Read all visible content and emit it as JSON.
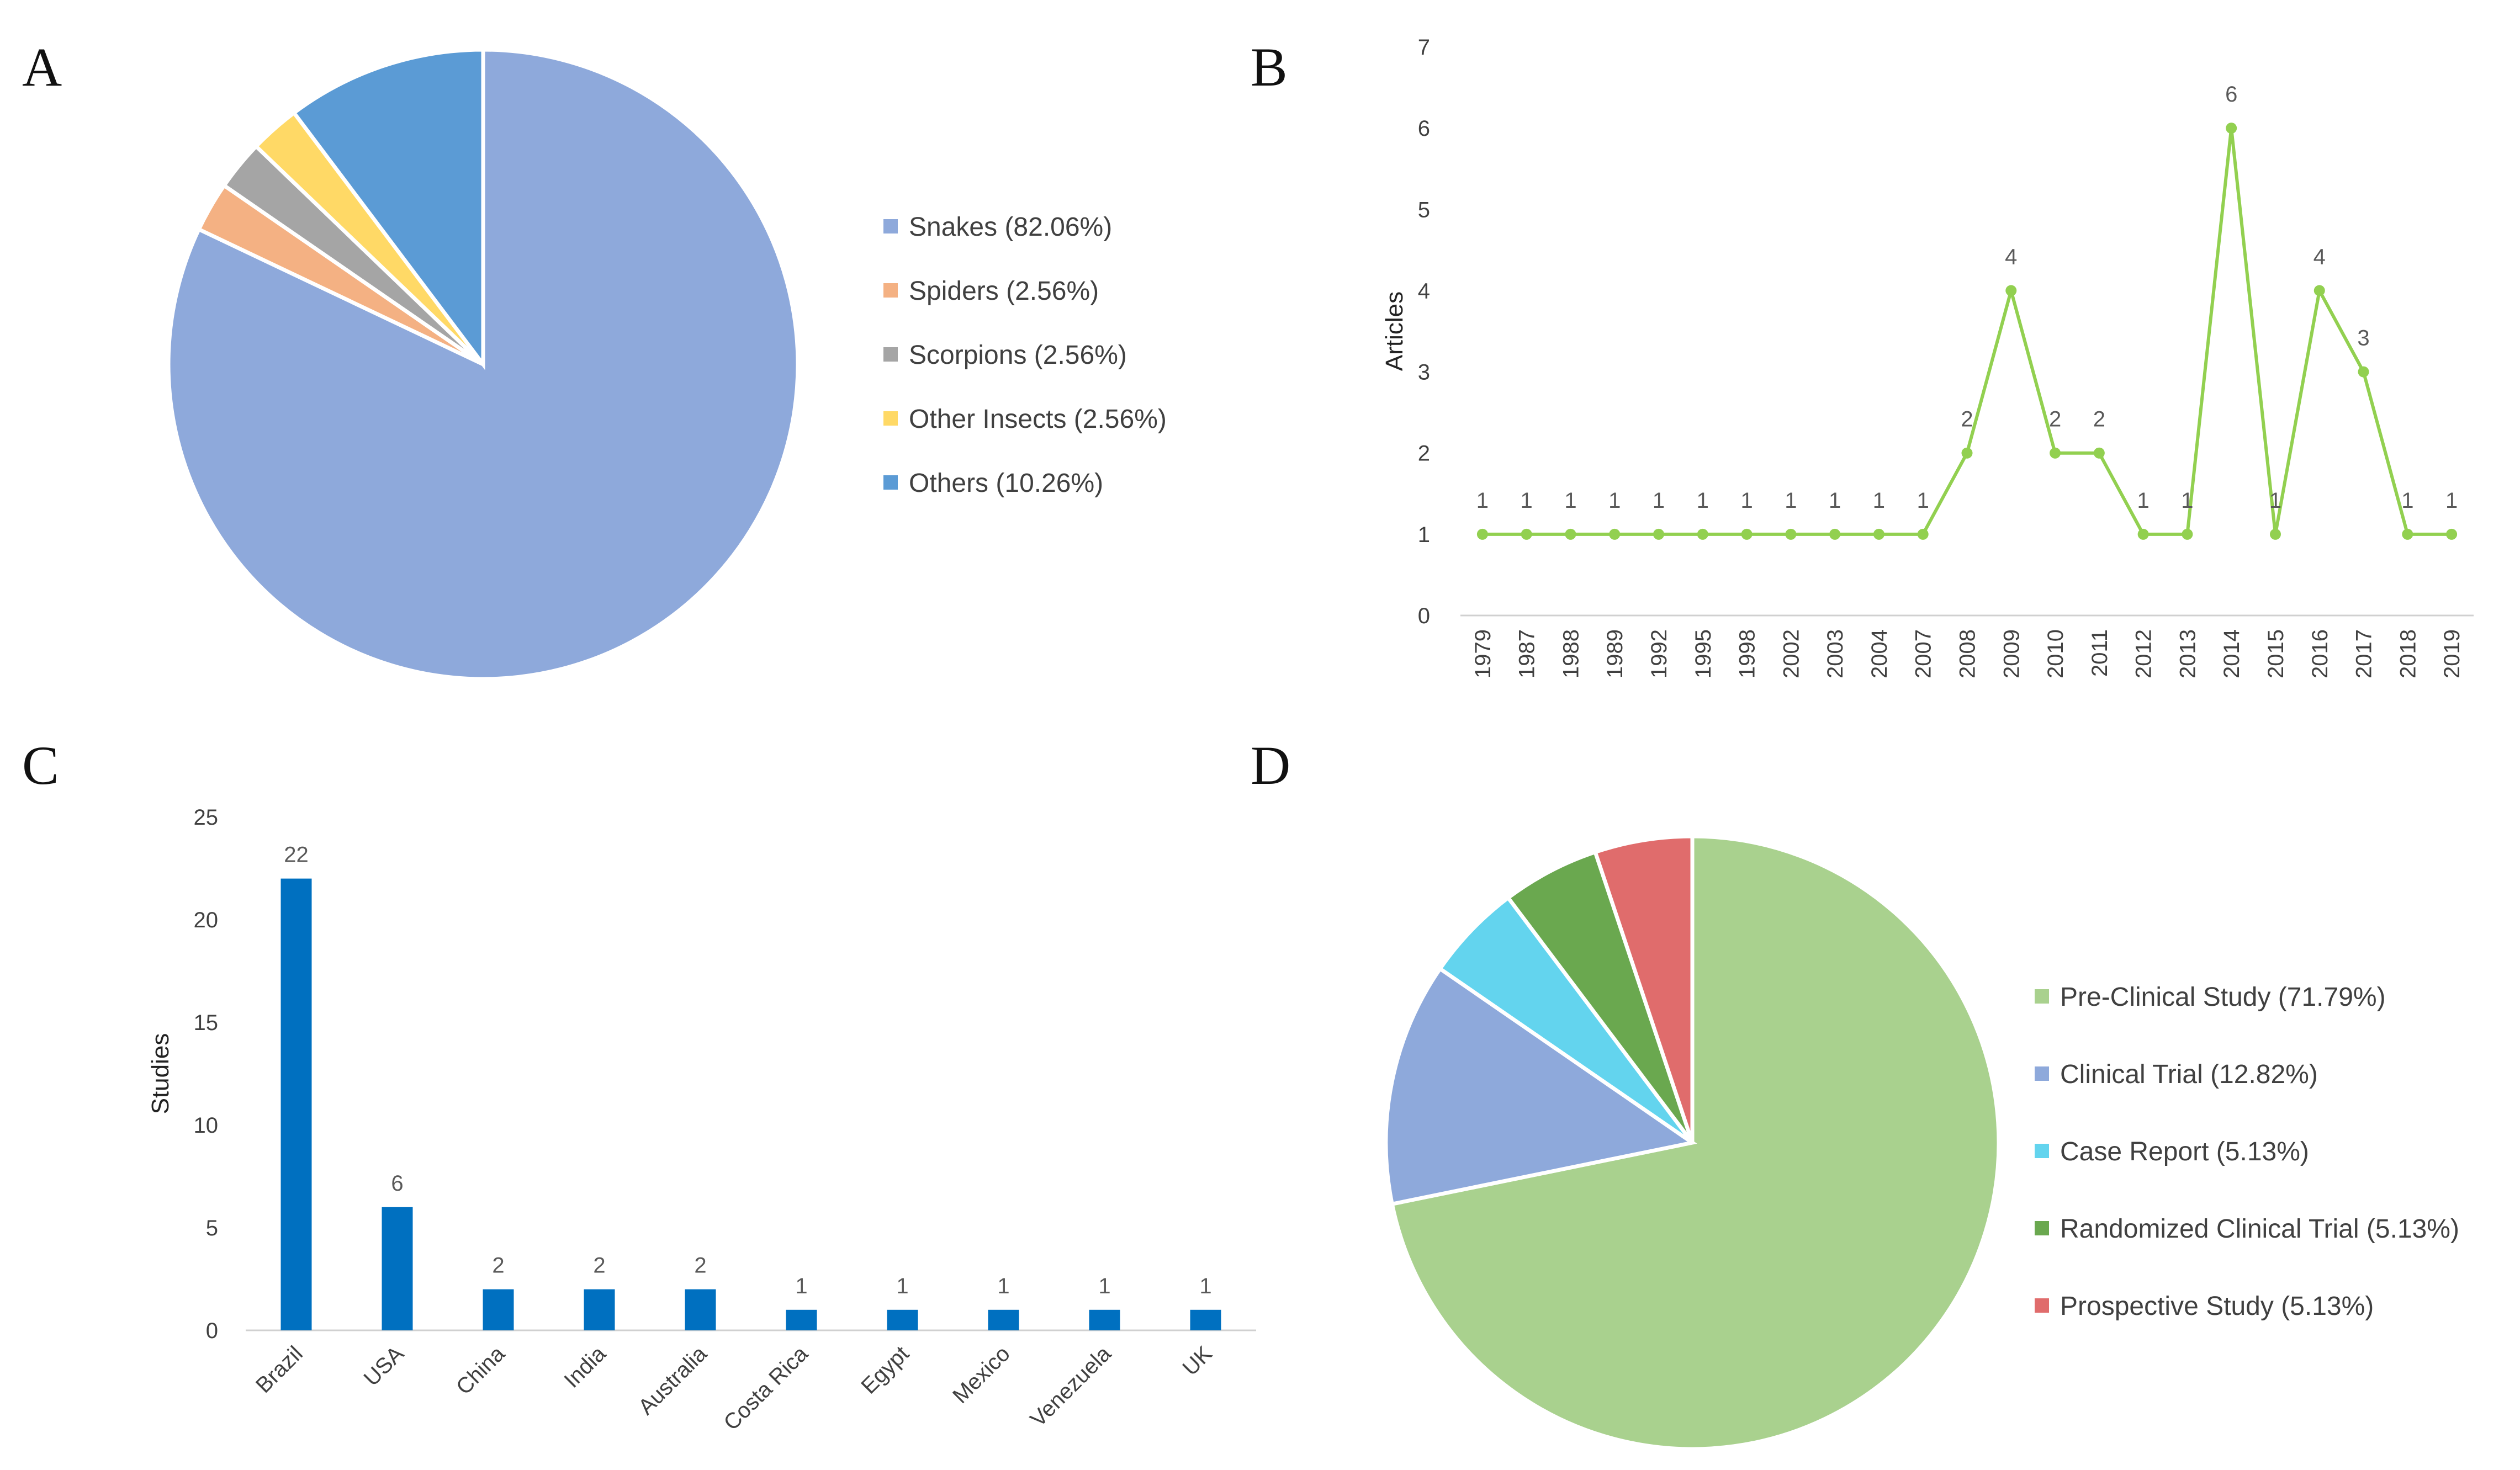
{
  "panels": {
    "a": "A",
    "b": "B",
    "c": "C",
    "d": "D"
  },
  "chart_data": [
    {
      "panel": "A",
      "type": "pie",
      "title": "",
      "labels": [
        "Snakes",
        "Spiders",
        "Scorpions",
        "Other Insects",
        "Others"
      ],
      "values": [
        82.06,
        2.56,
        2.56,
        2.56,
        10.26
      ],
      "legend_labels": [
        "Snakes (82.06%)",
        "Spiders (2.56%)",
        "Scorpions (2.56%)",
        "Other Insects (2.56%)",
        "Others (10.26%)"
      ],
      "colors": [
        "#8EA9DB",
        "#F4B183",
        "#A5A5A5",
        "#FFD966",
        "#5B9BD5"
      ],
      "legend_position": "right"
    },
    {
      "panel": "B",
      "type": "line",
      "title": "",
      "xlabel": "",
      "ylabel": "Articles",
      "x": [
        "1979",
        "1987",
        "1988",
        "1989",
        "1992",
        "1995",
        "1998",
        "2002",
        "2003",
        "2004",
        "2007",
        "2008",
        "2009",
        "2010",
        "2011",
        "2012",
        "2013",
        "2014",
        "2015",
        "2016",
        "2017",
        "2018",
        "2019"
      ],
      "values": [
        1,
        1,
        1,
        1,
        1,
        1,
        1,
        1,
        1,
        1,
        1,
        2,
        4,
        2,
        2,
        1,
        1,
        6,
        1,
        4,
        3,
        1,
        1
      ],
      "ylim": [
        0,
        7
      ],
      "yticks": [
        0,
        1,
        2,
        3,
        4,
        5,
        6,
        7
      ],
      "grid": false,
      "color": "#92D050"
    },
    {
      "panel": "C",
      "type": "bar",
      "title": "",
      "xlabel": "",
      "ylabel": "Studies",
      "categories": [
        "Brazil",
        "USA",
        "China",
        "India",
        "Australia",
        "Costa Rica",
        "Egypt",
        "Mexico",
        "Venezuela",
        "UK"
      ],
      "values": [
        22,
        6,
        2,
        2,
        2,
        1,
        1,
        1,
        1,
        1
      ],
      "ylim": [
        0,
        25
      ],
      "yticks": [
        0,
        5,
        10,
        15,
        20,
        25
      ],
      "grid": false,
      "color": "#0070C0"
    },
    {
      "panel": "D",
      "type": "pie",
      "title": "",
      "labels": [
        "Pre-Clinical Study",
        "Clinical Trial",
        "Case Report",
        "Randomized Clinical Trial",
        "Prospective Study"
      ],
      "values": [
        71.79,
        12.82,
        5.13,
        5.13,
        5.13
      ],
      "legend_labels": [
        "Pre-Clinical Study (71.79%)",
        "Clinical Trial (12.82%)",
        "Case Report (5.13%)",
        "Randomized Clinical Trial (5.13%)",
        "Prospective Study (5.13%)"
      ],
      "colors": [
        "#A9D18E",
        "#8EA9DB",
        "#63D4EE",
        "#6AA84F",
        "#E06C6C"
      ],
      "legend_position": "right"
    }
  ]
}
